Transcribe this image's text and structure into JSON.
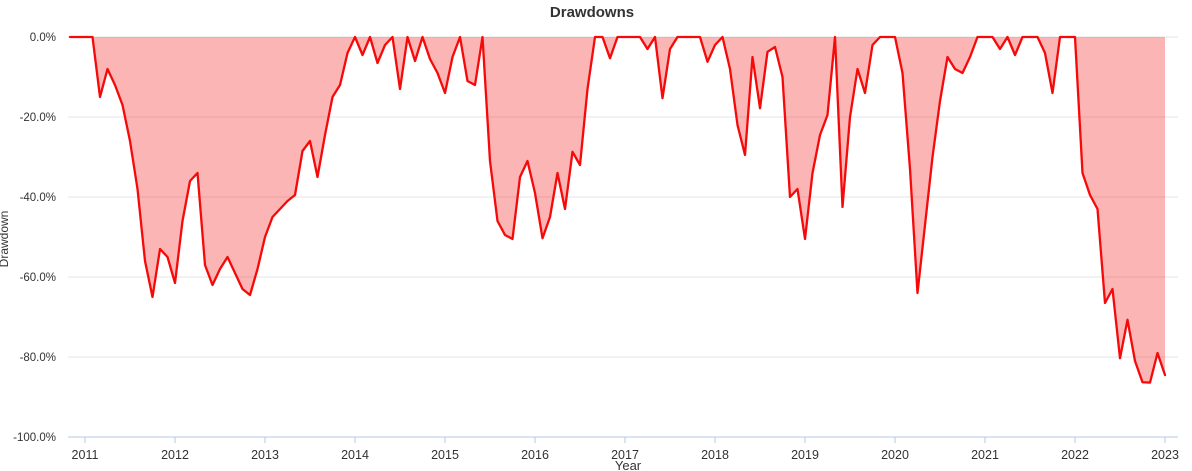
{
  "chart_data": {
    "type": "area",
    "title": "Drawdowns",
    "xlabel": "Year",
    "ylabel": "Drawdown",
    "legend": "none",
    "grid": "horizontal",
    "x_ticks": [
      2011,
      2012,
      2013,
      2014,
      2015,
      2016,
      2017,
      2018,
      2019,
      2020,
      2021,
      2022,
      2023
    ],
    "y_tick_labels": [
      "0.0%",
      "-20.0%",
      "-40.0%",
      "-60.0%",
      "-80.0%",
      "-100.0%"
    ],
    "y_tick_values": [
      0,
      -20,
      -40,
      -60,
      -80,
      -100
    ],
    "ylim": [
      -100,
      0
    ],
    "xlim": [
      2010.81,
      2023.14
    ],
    "series": [
      {
        "name": "Drawdown",
        "start": "2010-11",
        "frequency": "monthly",
        "unit": "%",
        "values": [
          0,
          0,
          0,
          0,
          -15,
          -8,
          -12,
          -17,
          -26,
          -38,
          -56,
          -65,
          -53,
          -55,
          -61.5,
          -46,
          -36,
          -34,
          -57,
          -62,
          -58,
          -55,
          -59,
          -63,
          -64.5,
          -58,
          -50,
          -45,
          -43,
          -41,
          -39.5,
          -28.5,
          -26,
          -35,
          -24.5,
          -15,
          -12,
          -4,
          0,
          -4.5,
          0,
          -6.5,
          -2,
          0,
          -13,
          0,
          -6,
          0,
          -5.5,
          -9,
          -14,
          -5,
          0,
          -11,
          -12,
          0,
          -31,
          -46,
          -49.5,
          -50.5,
          -35,
          -31,
          -39,
          -50.3,
          -45,
          -34,
          -43,
          -28.7,
          -32,
          -13,
          0,
          0,
          -5.3,
          0,
          0,
          0,
          0,
          -3,
          0,
          -15.3,
          -3,
          0,
          0,
          0,
          0,
          -6.2,
          -2,
          0,
          -8,
          -22,
          -29.5,
          -5,
          -17.8,
          -3.7,
          -2.5,
          -10,
          -40,
          -38,
          -50.5,
          -34,
          -24.5,
          -19.5,
          0,
          -42.5,
          -20,
          -8,
          -14,
          -2,
          0,
          0,
          0,
          -9,
          -33,
          -64,
          -47,
          -30,
          -16,
          -5,
          -8,
          -9,
          -5,
          0,
          0,
          0,
          -3,
          0,
          -4.5,
          0,
          0,
          0,
          -4,
          -14,
          0,
          0,
          0,
          -34,
          -39.5,
          -43,
          -66.5,
          -63,
          -80.3,
          -70.7,
          -81,
          -86.3,
          -86.4,
          -79,
          -84.5
        ]
      }
    ],
    "colors": {
      "line": "#f60909",
      "fill": "#f60909",
      "fill_opacity": 0.3,
      "grid": "#e6e6e6",
      "axis": "#b6c8de",
      "text": "#333333"
    }
  }
}
